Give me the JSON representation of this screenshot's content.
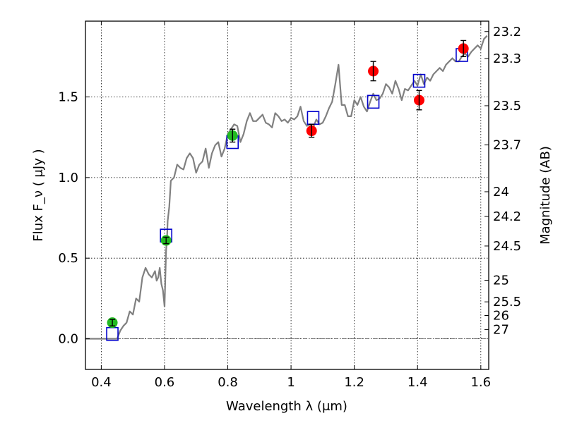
{
  "chart_data": {
    "type": "scatter",
    "title": "",
    "xlabel": "Wavelength  λ (μm)",
    "ylabel": "Flux  F_ν  ( μJy )",
    "ylabel_right": "Magnitude (AB)",
    "xlim": [
      0.35,
      1.625
    ],
    "ylim": [
      -0.19,
      1.97
    ],
    "grid": true,
    "x_ticks": [
      0.4,
      0.6,
      0.8,
      1.0,
      1.2,
      1.4,
      1.6
    ],
    "x_tick_labels": [
      "0.4",
      "0.6",
      "0.8",
      "1",
      "1.2",
      "1.4",
      "1.6"
    ],
    "y_ticks": [
      0.0,
      0.5,
      1.0,
      1.5
    ],
    "y_tick_labels": [
      "0.0",
      "0.5",
      "1.0",
      "1.5"
    ],
    "mag_ticks": [
      "23.2",
      "23.3",
      "23.5",
      "23.7",
      "24",
      "24.2",
      "24.5",
      "25",
      "25.5",
      "26",
      "27"
    ],
    "colors": {
      "spectrum": "#808080",
      "model_points": "#0000cc",
      "green_points": "#22bb22",
      "red_points": "#ff0000",
      "errorbars": "#000000"
    },
    "series": [
      {
        "type": "line",
        "x": [
          0.35,
          0.4,
          0.43,
          0.45,
          0.46,
          0.47,
          0.48,
          0.49,
          0.5,
          0.51,
          0.52,
          0.53,
          0.54,
          0.55,
          0.56,
          0.57,
          0.575,
          0.58,
          0.585,
          0.59,
          0.595,
          0.6,
          0.605,
          0.608,
          0.61,
          0.615,
          0.62,
          0.63,
          0.64,
          0.65,
          0.66,
          0.67,
          0.68,
          0.69,
          0.7,
          0.71,
          0.72,
          0.73,
          0.74,
          0.75,
          0.76,
          0.77,
          0.78,
          0.79,
          0.8,
          0.81,
          0.82,
          0.83,
          0.84,
          0.85,
          0.86,
          0.87,
          0.88,
          0.89,
          0.9,
          0.91,
          0.92,
          0.93,
          0.94,
          0.95,
          0.96,
          0.97,
          0.98,
          0.99,
          1.0,
          1.01,
          1.02,
          1.03,
          1.04,
          1.05,
          1.06,
          1.07,
          1.08,
          1.09,
          1.1,
          1.11,
          1.12,
          1.13,
          1.14,
          1.15,
          1.16,
          1.17,
          1.18,
          1.19,
          1.2,
          1.21,
          1.22,
          1.23,
          1.24,
          1.25,
          1.26,
          1.27,
          1.28,
          1.29,
          1.3,
          1.31,
          1.32,
          1.33,
          1.34,
          1.35,
          1.36,
          1.37,
          1.38,
          1.39,
          1.4,
          1.41,
          1.42,
          1.43,
          1.44,
          1.45,
          1.46,
          1.47,
          1.48,
          1.49,
          1.5,
          1.51,
          1.52,
          1.53,
          1.54,
          1.55,
          1.56,
          1.57,
          1.58,
          1.59,
          1.6,
          1.61,
          1.62
        ],
        "y": [
          0.0,
          0.0,
          0.0,
          0.0,
          0.05,
          0.08,
          0.1,
          0.17,
          0.15,
          0.25,
          0.23,
          0.38,
          0.44,
          0.4,
          0.38,
          0.42,
          0.36,
          0.38,
          0.44,
          0.34,
          0.3,
          0.2,
          0.55,
          0.62,
          0.73,
          0.82,
          0.98,
          1.0,
          1.08,
          1.06,
          1.05,
          1.12,
          1.15,
          1.12,
          1.03,
          1.08,
          1.1,
          1.18,
          1.06,
          1.15,
          1.2,
          1.22,
          1.13,
          1.18,
          1.27,
          1.3,
          1.33,
          1.32,
          1.22,
          1.27,
          1.35,
          1.4,
          1.35,
          1.35,
          1.37,
          1.39,
          1.34,
          1.33,
          1.31,
          1.4,
          1.38,
          1.35,
          1.36,
          1.34,
          1.37,
          1.36,
          1.38,
          1.44,
          1.35,
          1.32,
          1.33,
          1.31,
          1.36,
          1.33,
          1.34,
          1.38,
          1.43,
          1.47,
          1.58,
          1.7,
          1.45,
          1.45,
          1.38,
          1.38,
          1.48,
          1.45,
          1.5,
          1.44,
          1.41,
          1.47,
          1.52,
          1.48,
          1.49,
          1.52,
          1.58,
          1.56,
          1.52,
          1.6,
          1.55,
          1.48,
          1.55,
          1.54,
          1.57,
          1.6,
          1.57,
          1.64,
          1.58,
          1.62,
          1.6,
          1.64,
          1.66,
          1.68,
          1.66,
          1.7,
          1.72,
          1.74,
          1.72,
          1.72,
          1.75,
          1.77,
          1.75,
          1.78,
          1.8,
          1.82,
          1.8,
          1.86,
          1.88
        ]
      },
      {
        "type": "model_squares",
        "x": [
          0.435,
          0.605,
          0.815,
          1.07,
          1.26,
          1.405,
          1.54
        ],
        "y": [
          0.03,
          0.64,
          1.22,
          1.37,
          1.47,
          1.6,
          1.76
        ]
      },
      {
        "type": "observed_green",
        "x": [
          0.435,
          0.605,
          0.815
        ],
        "y": [
          0.1,
          0.61,
          1.26
        ],
        "err": [
          0.02,
          0.02,
          0.04
        ]
      },
      {
        "type": "observed_red",
        "x": [
          1.065,
          1.26,
          1.405,
          1.545
        ],
        "y": [
          1.29,
          1.66,
          1.48,
          1.8
        ],
        "err": [
          0.04,
          0.06,
          0.06,
          0.05
        ]
      }
    ]
  }
}
